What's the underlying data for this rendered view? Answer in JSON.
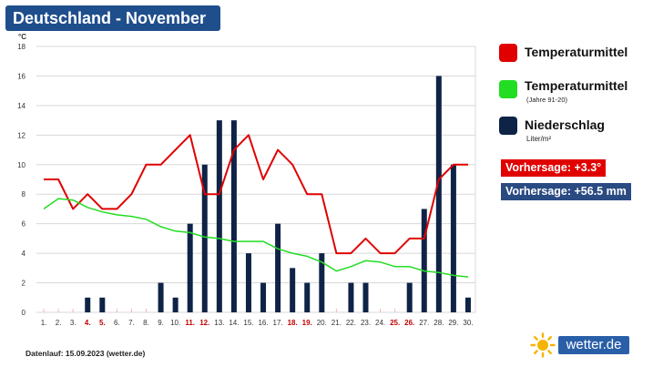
{
  "title": "Deutschland - November",
  "legend": {
    "temp": {
      "label": "Temperaturmittel",
      "color": "#e00000"
    },
    "climate": {
      "label": "Temperaturmittel",
      "sub": "(Jahre 91-20)",
      "color": "#22dd22"
    },
    "precip": {
      "label": "Niederschlag",
      "sub": "Liter/m²",
      "color": "#0f2347"
    }
  },
  "forecast": {
    "temp": "Vorhersage: +3.3°",
    "temp_color": "#e00000",
    "precip": "Vorhersage: +56.5 mm",
    "precip_color": "#2a4a82"
  },
  "footer": "Datenlauf: 15.09.2023 (wetter.de)",
  "brand": "wetter.de",
  "chart_data": {
    "type": "bar",
    "ylabel": "°C",
    "ylim": [
      0,
      18
    ],
    "yticks": [
      0,
      2,
      4,
      6,
      8,
      10,
      12,
      14,
      16,
      18
    ],
    "grid": true,
    "categories": [
      "1.",
      "2.",
      "3.",
      "4.",
      "5.",
      "6.",
      "7.",
      "8.",
      "9.",
      "10.",
      "11.",
      "12.",
      "13.",
      "14.",
      "15.",
      "16.",
      "17.",
      "18.",
      "19.",
      "20.",
      "21.",
      "22.",
      "23.",
      "24.",
      "25.",
      "26.",
      "27.",
      "28.",
      "29.",
      "30."
    ],
    "weekend": [
      4,
      5,
      11,
      12,
      18,
      19,
      25,
      26
    ],
    "series": [
      {
        "name": "Niederschlag",
        "kind": "bar",
        "color": "#0f2347",
        "values": [
          0,
          0,
          0,
          1,
          1,
          0,
          0,
          0,
          2,
          1,
          6,
          10,
          13,
          13,
          4,
          2,
          6,
          3,
          2,
          4,
          0,
          2,
          2,
          0,
          0,
          2,
          7,
          16,
          10,
          1
        ]
      },
      {
        "name": "Temperaturmittel",
        "kind": "line",
        "color": "#e00000",
        "values": [
          9,
          9,
          7,
          8,
          7,
          7,
          8,
          10,
          10,
          11,
          12,
          8,
          8,
          11,
          12,
          9,
          11,
          10,
          8,
          8,
          4,
          4,
          5,
          4,
          4,
          5,
          5,
          9,
          10,
          10
        ]
      },
      {
        "name": "Temperaturmittel (Jahre 91-20)",
        "kind": "line",
        "color": "#22dd22",
        "values": [
          7.0,
          7.7,
          7.6,
          7.1,
          6.8,
          6.6,
          6.5,
          6.3,
          5.8,
          5.5,
          5.4,
          5.1,
          5.0,
          4.8,
          4.8,
          4.8,
          4.3,
          4.0,
          3.8,
          3.4,
          2.8,
          3.1,
          3.5,
          3.4,
          3.1,
          3.1,
          2.8,
          2.7,
          2.5,
          2.4
        ]
      }
    ]
  }
}
